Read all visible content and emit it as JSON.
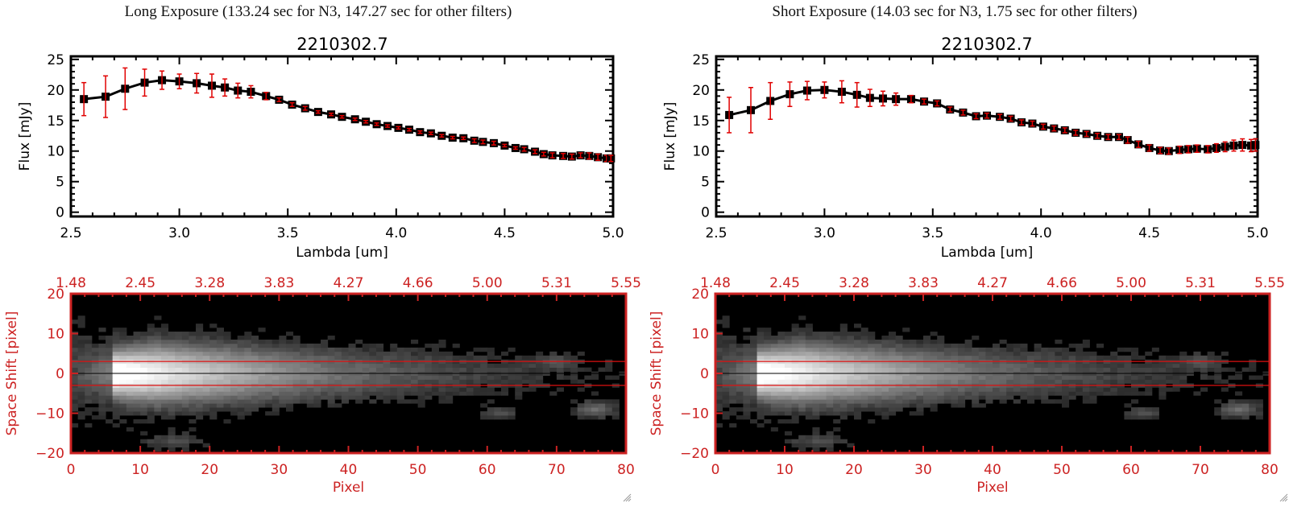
{
  "panels": [
    {
      "title": "Long Exposure (133.24 sec for N3, 147.27 sec for other filters)",
      "spectrum": {
        "type": "scatter",
        "title": "2210302.7",
        "xlabel": "Lambda [um]",
        "ylabel": "Flux [mJy]",
        "xlim": [
          2.5,
          5.0
        ],
        "ylim": [
          -0.7,
          25.5
        ],
        "xticks": [
          "2.5",
          "3.0",
          "3.5",
          "4.0",
          "4.5",
          "5.0"
        ],
        "xtick_values": [
          2.5,
          3.0,
          3.5,
          4.0,
          4.5,
          5.0
        ],
        "yticks": [
          "0",
          "5",
          "10",
          "15",
          "20",
          "25"
        ],
        "ytick_values": [
          0,
          5,
          10,
          15,
          20,
          25
        ],
        "series": [
          {
            "name": "flux",
            "x": [
              2.56,
              2.66,
              2.75,
              2.84,
              2.92,
              3.0,
              3.08,
              3.15,
              3.21,
              3.27,
              3.33,
              3.4,
              3.46,
              3.52,
              3.58,
              3.64,
              3.7,
              3.75,
              3.81,
              3.86,
              3.91,
              3.96,
              4.01,
              4.06,
              4.11,
              4.16,
              4.21,
              4.26,
              4.31,
              4.36,
              4.4,
              4.45,
              4.5,
              4.55,
              4.59,
              4.64,
              4.68,
              4.72,
              4.77,
              4.81,
              4.85,
              4.89,
              4.93,
              4.97,
              4.99
            ],
            "y": [
              18.5,
              18.9,
              20.2,
              21.2,
              21.6,
              21.4,
              21.1,
              20.7,
              20.4,
              19.9,
              19.7,
              19.0,
              18.4,
              17.6,
              17.0,
              16.4,
              16.0,
              15.6,
              15.2,
              14.8,
              14.4,
              14.1,
              13.8,
              13.5,
              13.1,
              12.9,
              12.5,
              12.2,
              12.1,
              11.7,
              11.5,
              11.3,
              10.9,
              10.5,
              10.3,
              9.9,
              9.5,
              9.3,
              9.2,
              9.1,
              9.3,
              9.2,
              9.0,
              8.8,
              8.8
            ],
            "err": [
              2.7,
              3.4,
              3.4,
              2.2,
              1.5,
              1.2,
              1.6,
              1.9,
              1.4,
              1.2,
              1.0,
              0.6,
              0.3,
              0.3,
              0.3,
              0.2,
              0.2,
              0.2,
              0.2,
              0.2,
              0.2,
              0.2,
              0.2,
              0.2,
              0.2,
              0.2,
              0.2,
              0.2,
              0.2,
              0.3,
              0.3,
              0.3,
              0.2,
              0.2,
              0.3,
              0.3,
              0.3,
              0.4,
              0.4,
              0.4,
              0.4,
              0.5,
              0.5,
              0.5,
              0.5
            ]
          }
        ]
      },
      "image": {
        "type": "heatmap",
        "xlabel": "Pixel",
        "ylabel": "Space Shift [pixel]",
        "xlim": [
          0,
          80
        ],
        "ylim": [
          -20,
          20
        ],
        "xticks": [
          "0",
          "10",
          "20",
          "30",
          "40",
          "50",
          "60",
          "70",
          "80"
        ],
        "yticks": [
          "-20",
          "-10",
          "0",
          "10",
          "20"
        ],
        "top_ticks": [
          "1.48",
          "2.45",
          "3.28",
          "3.83",
          "4.27",
          "4.66",
          "5.00",
          "5.31",
          "5.55"
        ],
        "aperture_lines": [
          3,
          -3
        ],
        "center_line": 0
      }
    },
    {
      "title": "Short Exposure (14.03 sec for N3, 1.75 sec for other filters)",
      "spectrum": {
        "type": "scatter",
        "title": "2210302.7",
        "xlabel": "Lambda [um]",
        "ylabel": "Flux [mJy]",
        "xlim": [
          2.5,
          5.0
        ],
        "ylim": [
          -0.7,
          25.5
        ],
        "xticks": [
          "2.5",
          "3.0",
          "3.5",
          "4.0",
          "4.5",
          "5.0"
        ],
        "xtick_values": [
          2.5,
          3.0,
          3.5,
          4.0,
          4.5,
          5.0
        ],
        "yticks": [
          "0",
          "5",
          "10",
          "15",
          "20",
          "25"
        ],
        "ytick_values": [
          0,
          5,
          10,
          15,
          20,
          25
        ],
        "series": [
          {
            "name": "flux",
            "x": [
              2.56,
              2.66,
              2.75,
              2.84,
              2.92,
              3.0,
              3.08,
              3.15,
              3.21,
              3.27,
              3.33,
              3.4,
              3.46,
              3.52,
              3.58,
              3.64,
              3.7,
              3.75,
              3.81,
              3.86,
              3.91,
              3.96,
              4.01,
              4.06,
              4.11,
              4.16,
              4.21,
              4.26,
              4.31,
              4.36,
              4.4,
              4.45,
              4.5,
              4.55,
              4.59,
              4.64,
              4.68,
              4.72,
              4.77,
              4.81,
              4.85,
              4.89,
              4.93,
              4.97,
              4.99
            ],
            "y": [
              15.9,
              16.7,
              18.2,
              19.3,
              19.9,
              20.0,
              19.7,
              19.2,
              18.7,
              18.6,
              18.5,
              18.5,
              18.1,
              17.8,
              16.8,
              16.3,
              15.7,
              15.8,
              15.6,
              15.3,
              14.7,
              14.5,
              14.0,
              13.7,
              13.4,
              13.0,
              12.8,
              12.5,
              12.3,
              12.3,
              11.8,
              11.1,
              10.5,
              10.1,
              10.0,
              10.2,
              10.3,
              10.4,
              10.3,
              10.5,
              10.7,
              10.9,
              11.0,
              10.9,
              11.0
            ],
            "err": [
              2.9,
              3.7,
              3.0,
              2.0,
              1.5,
              1.3,
              1.8,
              2.0,
              1.4,
              1.2,
              1.0,
              0.6,
              0.4,
              0.4,
              0.4,
              0.4,
              0.4,
              0.4,
              0.4,
              0.4,
              0.4,
              0.4,
              0.4,
              0.4,
              0.4,
              0.4,
              0.4,
              0.4,
              0.4,
              0.4,
              0.5,
              0.5,
              0.5,
              0.5,
              0.5,
              0.6,
              0.6,
              0.6,
              0.6,
              0.7,
              0.8,
              0.9,
              1.0,
              1.0,
              1.0
            ]
          }
        ]
      },
      "image": {
        "type": "heatmap",
        "xlabel": "Pixel",
        "ylabel": "Space Shift [pixel]",
        "xlim": [
          0,
          80
        ],
        "ylim": [
          -20,
          20
        ],
        "xticks": [
          "0",
          "10",
          "20",
          "30",
          "40",
          "50",
          "60",
          "70",
          "80"
        ],
        "yticks": [
          "-20",
          "-10",
          "0",
          "10",
          "20"
        ],
        "top_ticks": [
          "1.48",
          "2.45",
          "3.28",
          "3.83",
          "4.27",
          "4.66",
          "5.00",
          "5.31",
          "5.55"
        ],
        "aperture_lines": [
          3,
          -3
        ],
        "center_line": 0
      }
    }
  ],
  "colors": {
    "axis": "#000000",
    "errorbar": "#e00000",
    "image_axis": "#cc2222",
    "aperture_line": "#dd1111"
  },
  "chart_data": [
    {
      "type": "scatter",
      "title": "2210302.7",
      "subtitle": "Long Exposure (133.24 sec for N3, 147.27 sec for other filters)",
      "xlabel": "Lambda [um]",
      "ylabel": "Flux [mJy]",
      "xlim": [
        2.5,
        5.0
      ],
      "ylim": [
        0,
        25
      ],
      "grid": false
    },
    {
      "type": "heatmap",
      "xlabel": "Pixel",
      "ylabel": "Space Shift [pixel]",
      "xlim": [
        0,
        80
      ],
      "ylim": [
        -20,
        20
      ]
    },
    {
      "type": "scatter",
      "title": "2210302.7",
      "subtitle": "Short Exposure (14.03 sec for N3, 1.75 sec for other filters)",
      "xlabel": "Lambda [um]",
      "ylabel": "Flux [mJy]",
      "xlim": [
        2.5,
        5.0
      ],
      "ylim": [
        0,
        25
      ],
      "grid": false
    },
    {
      "type": "heatmap",
      "xlabel": "Pixel",
      "ylabel": "Space Shift [pixel]",
      "xlim": [
        0,
        80
      ],
      "ylim": [
        -20,
        20
      ]
    }
  ]
}
